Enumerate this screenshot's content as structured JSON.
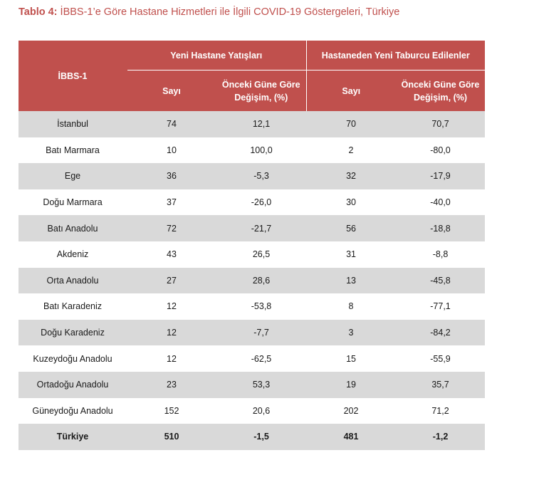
{
  "title": {
    "prefix": "Tablo 4:",
    "text": "İBBS-1’e Göre Hastane Hizmetleri ile İlgili COVID-19 Göstergeleri, Türkiye"
  },
  "colors": {
    "header_bg": "#c0504d",
    "title": "#c0504d",
    "stripe": "#d9d9d9"
  },
  "table": {
    "group_headers": [
      "Yeni Hastane Yatışları",
      "Hastaneden Yeni Taburcu Edilenler"
    ],
    "column_headers": [
      "İBBS-1",
      "Sayı",
      "Önceki Güne Göre Değişim, (%)",
      "Sayı",
      "Önceki Güne Göre Değişim, (%)"
    ],
    "rows": [
      [
        "İstanbul",
        "74",
        "12,1",
        "70",
        "70,7"
      ],
      [
        "Batı Marmara",
        "10",
        "100,0",
        "2",
        "-80,0"
      ],
      [
        "Ege",
        "36",
        "-5,3",
        "32",
        "-17,9"
      ],
      [
        "Doğu Marmara",
        "37",
        "-26,0",
        "30",
        "-40,0"
      ],
      [
        "Batı Anadolu",
        "72",
        "-21,7",
        "56",
        "-18,8"
      ],
      [
        "Akdeniz",
        "43",
        "26,5",
        "31",
        "-8,8"
      ],
      [
        "Orta Anadolu",
        "27",
        "28,6",
        "13",
        "-45,8"
      ],
      [
        "Batı Karadeniz",
        "12",
        "-53,8",
        "8",
        "-77,1"
      ],
      [
        "Doğu Karadeniz",
        "12",
        "-7,7",
        "3",
        "-84,2"
      ],
      [
        "Kuzeydoğu Anadolu",
        "12",
        "-62,5",
        "15",
        "-55,9"
      ],
      [
        "Ortadoğu Anadolu",
        "23",
        "53,3",
        "19",
        "35,7"
      ],
      [
        "Güneydoğu Anadolu",
        "152",
        "20,6",
        "202",
        "71,2"
      ]
    ],
    "total": [
      "Türkiye",
      "510",
      "-1,5",
      "481",
      "-1,2"
    ]
  }
}
